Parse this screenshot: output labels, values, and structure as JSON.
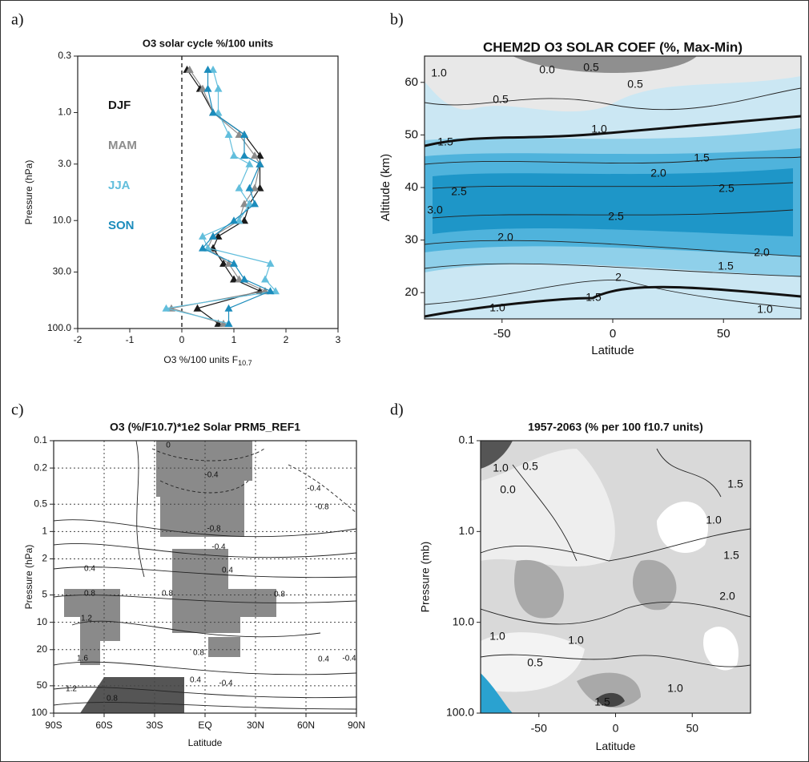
{
  "chart_data": [
    {
      "type": "line",
      "panel_label": "a)",
      "title": "O3 solar cycle %/100 units",
      "xlabel": "O3 %/100 units F",
      "xlabel_subscript": "10.7",
      "ylabel": "Pressure (hPa)",
      "xlim": [
        -2,
        3
      ],
      "xticks": [
        -2,
        -1,
        0,
        1,
        2,
        3
      ],
      "ylog": true,
      "ylim": [
        100,
        0.3
      ],
      "yticks": [
        {
          "value": 100,
          "label": "100.0"
        },
        {
          "value": 30,
          "label": "30.0"
        },
        {
          "value": 10,
          "label": "10.0"
        },
        {
          "value": 3,
          "label": "3.0"
        },
        {
          "value": 1,
          "label": "1.0"
        },
        0.3
      ],
      "y": [
        0.4,
        0.6,
        1,
        1.6,
        2.5,
        3,
        5,
        7,
        10,
        14,
        18,
        25,
        35,
        45,
        65,
        90
      ],
      "series": [
        {
          "name": "DJF",
          "color": "#1a1a1a",
          "values": [
            0.1,
            0.35,
            0.6,
            1.2,
            1.5,
            1.5,
            1.5,
            1.3,
            1.2,
            0.7,
            0.6,
            0.8,
            1.0,
            1.5,
            0.3,
            0.7
          ]
        },
        {
          "name": "MAM",
          "color": "#8c8c8c",
          "values": [
            0.15,
            0.4,
            0.6,
            1.1,
            1.4,
            1.5,
            1.4,
            1.2,
            1.1,
            0.6,
            0.5,
            0.9,
            1.1,
            1.6,
            -0.2,
            0.8
          ]
        },
        {
          "name": "JJA",
          "color": "#62bedc",
          "values": [
            0.6,
            0.7,
            0.7,
            0.9,
            1.0,
            1.3,
            1.1,
            1.3,
            1.1,
            0.4,
            0.5,
            1.7,
            1.6,
            1.8,
            -0.3,
            0.9
          ]
        },
        {
          "name": "SON",
          "color": "#1b8cbc",
          "values": [
            0.5,
            0.5,
            0.6,
            1.2,
            1.2,
            1.5,
            1.3,
            1.4,
            1.0,
            0.6,
            0.4,
            1.0,
            1.2,
            1.7,
            0.9,
            0.9
          ]
        }
      ]
    },
    {
      "type": "contour",
      "panel_label": "b)",
      "title": "CHEM2D O3 SOLAR COEF (%, Max-Min)",
      "xlabel": "Latitude",
      "ylabel": "Altitude (km)",
      "xlim": [
        -85,
        85
      ],
      "xticks": [
        -50,
        0,
        50
      ],
      "ylim": [
        15,
        65
      ],
      "yticks": [
        20,
        30,
        40,
        50,
        60
      ],
      "contour_labels": [
        {
          "value": 1,
          "label": "1.0"
        },
        {
          "value": 0,
          "label": "0.0"
        },
        {
          "value": 0.5,
          "label": "0.5"
        },
        0.5,
        0.5,
        {
          "value": 1,
          "label": "1.0"
        },
        1.5,
        1.5,
        {
          "value": 2,
          "label": "2.0"
        },
        2.5,
        2.5,
        2.5,
        {
          "value": 3,
          "label": "3.0"
        },
        {
          "value": 2,
          "label": "2.0"
        },
        {
          "value": 2,
          "label": "2.0"
        },
        1.5,
        1.5,
        2,
        {
          "value": 1,
          "label": "1.0"
        },
        {
          "value": 1,
          "label": "1.0"
        }
      ]
    },
    {
      "type": "contour",
      "panel_label": "c)",
      "title": "O3 (%/F10.7)*1e2  Solar   PRM5_REF1",
      "xlabel": "Latitude",
      "ylabel": "Pressure (hPa)",
      "xlim": [
        -90,
        90
      ],
      "xticks": [
        {
          "value": -90,
          "label": "90S"
        },
        {
          "value": -60,
          "label": "60S"
        },
        {
          "value": -30,
          "label": "30S"
        },
        {
          "value": 0,
          "label": "EQ"
        },
        {
          "value": 30,
          "label": "30N"
        },
        {
          "value": 60,
          "label": "60N"
        },
        {
          "value": 90,
          "label": "90N"
        }
      ],
      "ylog": true,
      "ylim": [
        100,
        0.1
      ],
      "yticks": [
        100,
        50,
        20,
        10,
        5,
        2,
        1,
        0.5,
        0.2,
        0.1
      ],
      "grid": true,
      "contour_labels": [
        0,
        -0.4,
        -0.8,
        -0.4,
        0.4,
        0.8,
        0.8,
        0.4,
        0.8,
        -0.4,
        -0.8,
        1.2,
        1.6,
        0.8,
        0.4,
        0.4,
        -0.4,
        1.2,
        0.8,
        -0.4
      ]
    },
    {
      "type": "contour",
      "panel_label": "d)",
      "title": "1957-2063 (% per 100 f10.7 units)",
      "xlabel": "Latitude",
      "ylabel": "Pressure (mb)",
      "xlim": [
        -88,
        88
      ],
      "xticks": [
        -50,
        0,
        50
      ],
      "ylog": true,
      "ylim": [
        100,
        0.1
      ],
      "yticks": [
        {
          "value": 100,
          "label": "100.0"
        },
        {
          "value": 10,
          "label": "10.0"
        },
        {
          "value": 1,
          "label": "1.0"
        },
        0.1
      ],
      "contour_labels": [
        {
          "value": 1,
          "label": "1.0"
        },
        {
          "value": 0,
          "label": "0.0"
        },
        0.5,
        1.5,
        {
          "value": 1,
          "label": "1.0"
        },
        1.5,
        {
          "value": 2,
          "label": "2.0"
        },
        {
          "value": 1,
          "label": "1.0"
        },
        0.5,
        {
          "value": 1,
          "label": "1.0"
        },
        1.5,
        {
          "value": 1,
          "label": "1.0"
        }
      ]
    }
  ]
}
